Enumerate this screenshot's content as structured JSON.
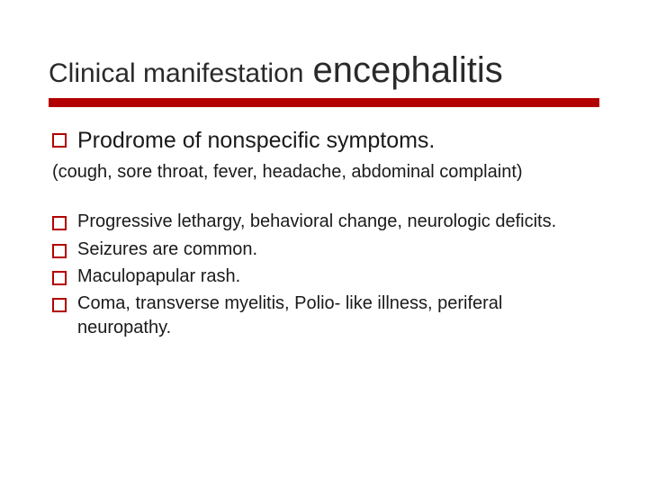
{
  "colors": {
    "rule": "#b30000",
    "bullet_border": "#b30000",
    "text": "#1a1a1a",
    "background": "#ffffff"
  },
  "typography": {
    "family": "Verdana",
    "title_small_fontsize": 30,
    "title_large_fontsize": 40,
    "level1_fontsize": 25,
    "paren_fontsize": 20,
    "level2_fontsize": 20
  },
  "title": {
    "small": "Clinical manifestation",
    "large": "encephalitis"
  },
  "level1_item": "Prodrome of nonspecific symptoms.",
  "paren_text": "(cough, sore throat, fever, headache,  abdominal complaint)",
  "level2_items": [
    "Progressive lethargy, behavioral change, neurologic deficits.",
    "Seizures are common.",
    "Maculopapular rash.",
    "Coma, transverse myelitis, Polio- like illness, periferal neuropathy."
  ]
}
